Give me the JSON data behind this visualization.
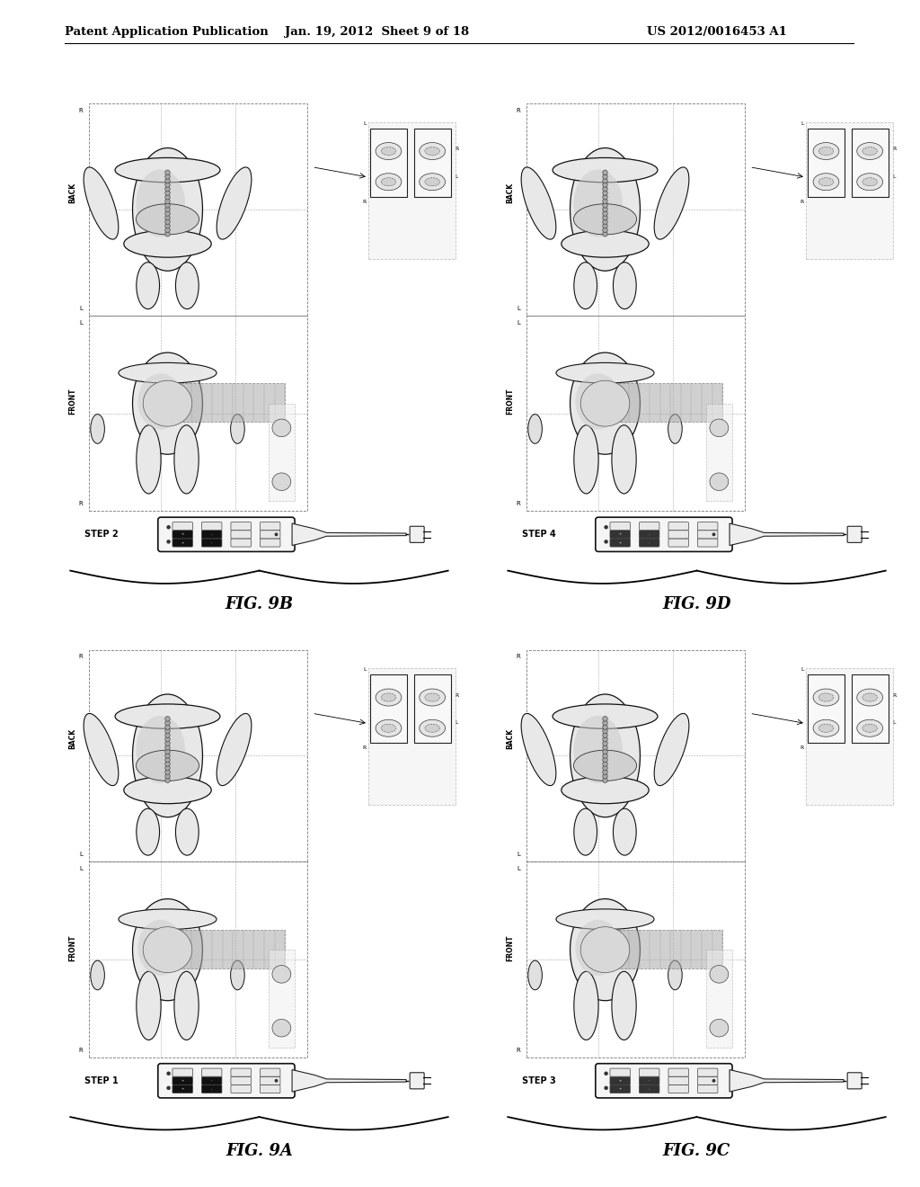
{
  "page_title_left": "Patent Application Publication",
  "page_title_mid": "Jan. 19, 2012  Sheet 9 of 18",
  "page_title_right": "US 2012/0016453 A1",
  "background_color": "#ffffff",
  "panels": [
    {
      "fig_label": "FIG. 9B",
      "step": "STEP 2",
      "col": 0,
      "row": 1,
      "active_cols": [
        0,
        1
      ],
      "shade_back": true,
      "shade_front": true
    },
    {
      "fig_label": "FIG. 9D",
      "step": "STEP 4",
      "col": 1,
      "row": 1,
      "active_cols": [
        0,
        1
      ],
      "shade_back": true,
      "shade_front": true
    },
    {
      "fig_label": "FIG. 9A",
      "step": "STEP 1",
      "col": 0,
      "row": 0,
      "active_cols": [
        0,
        1
      ],
      "shade_back": true,
      "shade_front": true
    },
    {
      "fig_label": "FIG. 9C",
      "step": "STEP 3",
      "col": 1,
      "row": 0,
      "active_cols": [
        0,
        1
      ],
      "shade_back": true,
      "shade_front": true
    }
  ]
}
